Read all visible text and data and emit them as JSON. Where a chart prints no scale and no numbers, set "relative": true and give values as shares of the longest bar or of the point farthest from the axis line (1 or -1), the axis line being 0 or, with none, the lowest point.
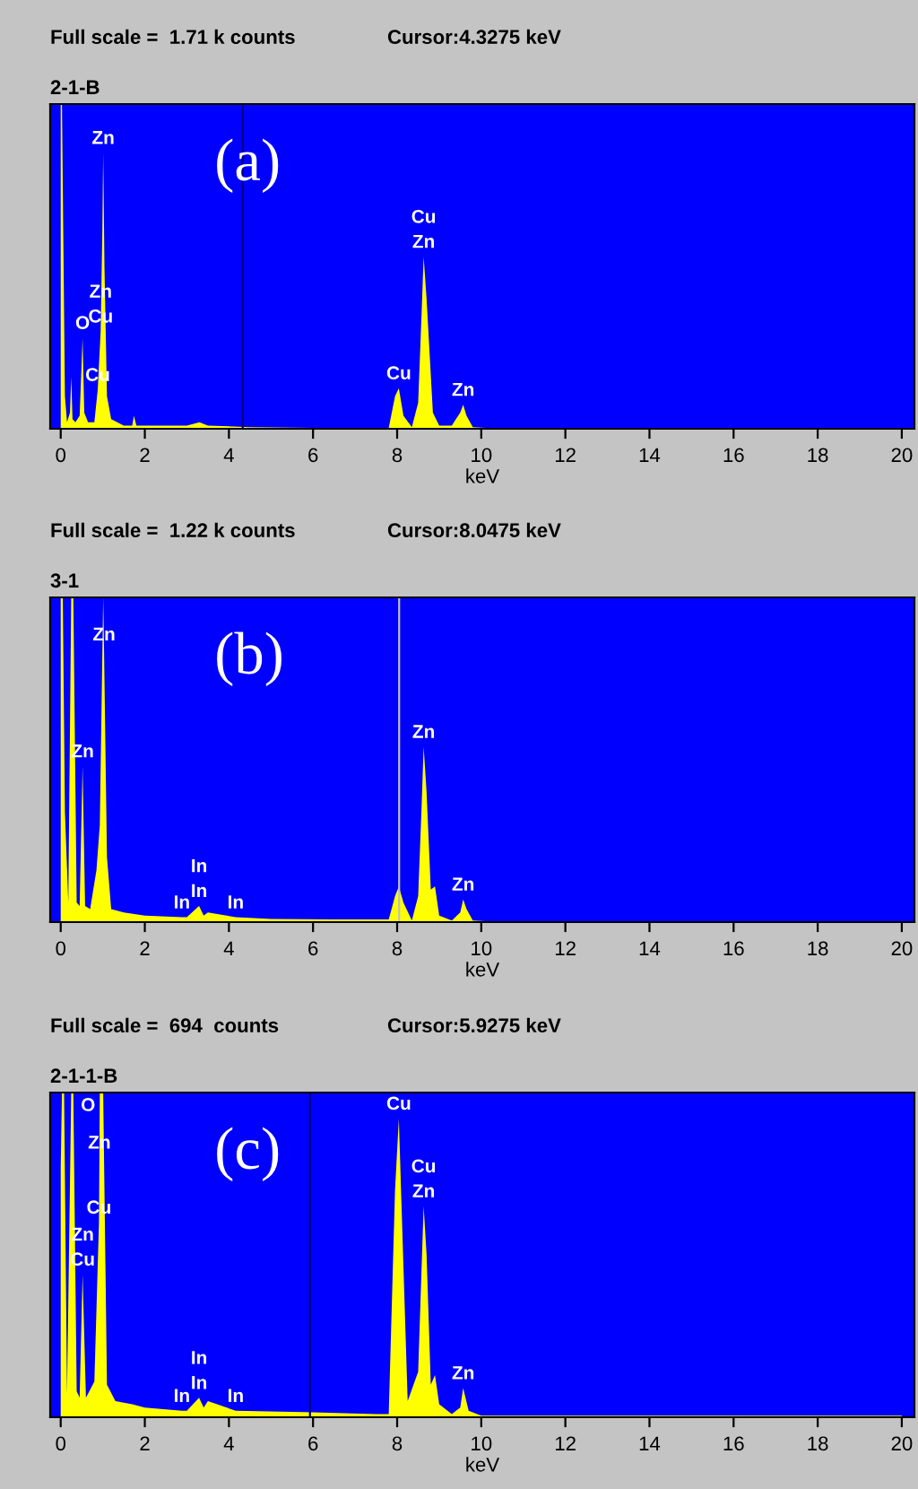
{
  "chart_data": [
    {
      "type": "area",
      "title": "2-1-B",
      "xlabel": "keV",
      "relative": true,
      "xlim": [
        -0.25,
        20.3
      ],
      "xticks": [
        0,
        2,
        4,
        6,
        8,
        10,
        12,
        14,
        16,
        18,
        20
      ],
      "grid": false,
      "annotations": [
        "Full scale =  1.71 k counts",
        "Cursor:4.3275 keV",
        "(a)",
        {
          "text": "Zn",
          "x": 1.01,
          "y": 0.85
        },
        {
          "text": "Cu",
          "x": 0.95,
          "y": 0.3
        },
        {
          "text": "Zn",
          "x": 0.95,
          "y": 0.3
        },
        {
          "text": "O",
          "x": 0.52,
          "y": 0.28
        },
        {
          "text": "Cu",
          "x": 0.88,
          "y": 0.12
        },
        {
          "text": "Zn",
          "x": 8.63,
          "y": 0.53
        },
        {
          "text": "Cu",
          "x": 8.63,
          "y": 0.53
        },
        {
          "text": "Cu",
          "x": 8.04,
          "y": 0.125
        },
        {
          "text": "Zn",
          "x": 9.57,
          "y": 0.074
        }
      ],
      "ref_lines": [
        {
          "axis": "x",
          "value": 4.3275,
          "color": "#000080"
        }
      ],
      "series": [
        {
          "color": "#ffff00",
          "x": [
            0,
            0.03,
            0.1,
            0.15,
            0.22,
            0.25,
            0.28,
            0.35,
            0.45,
            0.52,
            0.56,
            0.65,
            0.8,
            0.88,
            0.95,
            0.99,
            1.01,
            1.04,
            1.1,
            1.2,
            1.5,
            1.7,
            1.74,
            1.8,
            2.0,
            3.0,
            3.3,
            3.5,
            4.5,
            6.0,
            7.8,
            7.95,
            8.04,
            8.15,
            8.35,
            8.5,
            8.58,
            8.63,
            8.7,
            8.85,
            9.0,
            9.3,
            9.5,
            9.57,
            9.65,
            9.8,
            10.2,
            20
          ],
          "values": [
            1,
            1,
            0.1,
            0.02,
            0.05,
            0.16,
            0.03,
            0.02,
            0.04,
            0.28,
            0.05,
            0.02,
            0.02,
            0.12,
            0.3,
            0.61,
            0.85,
            0.5,
            0.1,
            0.03,
            0.01,
            0.01,
            0.04,
            0.01,
            0.01,
            0.01,
            0.02,
            0.01,
            0.005,
            0.003,
            0.003,
            0.1,
            0.125,
            0.04,
            0.005,
            0.08,
            0.35,
            0.53,
            0.4,
            0.05,
            0.01,
            0.01,
            0.05,
            0.074,
            0.04,
            0.005,
            0.002,
            0.002
          ]
        }
      ]
    },
    {
      "type": "area",
      "title": "3-1",
      "xlabel": "keV",
      "relative": true,
      "xlim": [
        -0.25,
        20.3
      ],
      "xticks": [
        0,
        2,
        4,
        6,
        8,
        10,
        12,
        14,
        16,
        18,
        20
      ],
      "grid": false,
      "annotations": [
        "Full scale =  1.22 k counts",
        "Cursor:8.0475 keV",
        "(b)",
        {
          "text": "Zn",
          "x": 1.03,
          "y": 0.84
        },
        {
          "text": "Zn",
          "x": 0.52,
          "y": 0.48
        },
        {
          "text": "In",
          "x": 2.88,
          "y": 0.015
        },
        {
          "text": "In",
          "x": 3.29,
          "y": 0.05
        },
        {
          "text": "In",
          "x": 3.29,
          "y": 0.05
        },
        {
          "text": "In",
          "x": 4.16,
          "y": 0.015
        },
        {
          "text": "Zn",
          "x": 8.63,
          "y": 0.54
        },
        {
          "text": "Zn",
          "x": 9.57,
          "y": 0.07
        }
      ],
      "ref_lines": [
        {
          "axis": "x",
          "value": 8.0475,
          "color": "#c0c0c0"
        }
      ],
      "series": [
        {
          "color": "#ffff00",
          "x": [
            0,
            0.05,
            0.1,
            0.18,
            0.25,
            0.3,
            0.38,
            0.45,
            0.52,
            0.58,
            0.7,
            0.85,
            0.93,
            1.01,
            1.03,
            1.1,
            1.2,
            1.5,
            2.0,
            2.88,
            3.0,
            3.29,
            3.4,
            3.5,
            4.16,
            5.0,
            6.5,
            7.8,
            7.95,
            8.04,
            8.15,
            8.35,
            8.5,
            8.58,
            8.63,
            8.7,
            8.8,
            8.9,
            9.0,
            9.3,
            9.5,
            9.57,
            9.65,
            9.8,
            10.2,
            20
          ],
          "values": [
            1,
            1,
            0.34,
            0.06,
            1,
            1,
            0.06,
            0.05,
            0.48,
            0.05,
            0.04,
            0.16,
            0.3,
            1,
            0.84,
            0.2,
            0.04,
            0.03,
            0.02,
            0.015,
            0.015,
            0.05,
            0.02,
            0.03,
            0.015,
            0.01,
            0.008,
            0.008,
            0.08,
            0.11,
            0.06,
            0.005,
            0.08,
            0.35,
            0.54,
            0.4,
            0.1,
            0.11,
            0.02,
            0.005,
            0.03,
            0.07,
            0.04,
            0.005,
            0.002,
            0.002
          ]
        }
      ]
    },
    {
      "type": "area",
      "title": "2-1-1-B",
      "xlabel": "keV",
      "relative": true,
      "xlim": [
        -0.25,
        20.3
      ],
      "xticks": [
        0,
        2,
        4,
        6,
        8,
        10,
        12,
        14,
        16,
        18,
        20
      ],
      "grid": false,
      "annotations": [
        "Full scale =  694  counts",
        "Cursor:5.9275 keV",
        "(c)",
        {
          "text": "Cu",
          "x": 0.52,
          "y": 0.44
        },
        {
          "text": "Zn",
          "x": 0.52,
          "y": 0.44
        },
        {
          "text": "Cu",
          "x": 0.91,
          "y": 0.6
        },
        {
          "text": "Zn",
          "x": 0.92,
          "y": 0.8
        },
        {
          "text": "O",
          "x": 0.3,
          "y": 1
        },
        {
          "text": "In",
          "x": 2.88,
          "y": 0.02
        },
        {
          "text": "In",
          "x": 3.29,
          "y": 0.06
        },
        {
          "text": "In",
          "x": 3.29,
          "y": 0.06
        },
        {
          "text": "In",
          "x": 4.16,
          "y": 0.02
        },
        {
          "text": "Cu",
          "x": 8.04,
          "y": 0.92
        },
        {
          "text": "Zn",
          "x": 8.63,
          "y": 0.65
        },
        {
          "text": "Cu",
          "x": 8.63,
          "y": 0.65
        },
        {
          "text": "Zn",
          "x": 9.57,
          "y": 0.09
        }
      ],
      "ref_lines": [
        {
          "axis": "x",
          "value": 5.9275,
          "color": "#000080"
        }
      ],
      "series": [
        {
          "color": "#ffff00",
          "x": [
            0,
            0.03,
            0.08,
            0.15,
            0.25,
            0.3,
            0.38,
            0.45,
            0.52,
            0.6,
            0.8,
            0.91,
            0.92,
            0.93,
            1.01,
            1.1,
            1.3,
            1.7,
            2.0,
            2.88,
            3.0,
            3.29,
            3.4,
            3.5,
            4.16,
            6.0,
            7.5,
            7.8,
            7.95,
            8.04,
            8.1,
            8.25,
            8.5,
            8.63,
            8.7,
            8.8,
            8.9,
            9.0,
            9.3,
            9.5,
            9.57,
            9.7,
            10.0,
            20
          ],
          "values": [
            0.77,
            1,
            1,
            0.07,
            1,
            1,
            0.08,
            0.06,
            0.44,
            0.06,
            0.11,
            0.6,
            0.8,
            1,
            1,
            0.1,
            0.05,
            0.04,
            0.03,
            0.02,
            0.02,
            0.06,
            0.03,
            0.05,
            0.02,
            0.015,
            0.01,
            0.01,
            0.7,
            0.92,
            0.67,
            0.05,
            0.14,
            0.65,
            0.5,
            0.1,
            0.13,
            0.04,
            0.01,
            0.03,
            0.09,
            0.02,
            0.005,
            0.005
          ]
        }
      ]
    }
  ]
}
